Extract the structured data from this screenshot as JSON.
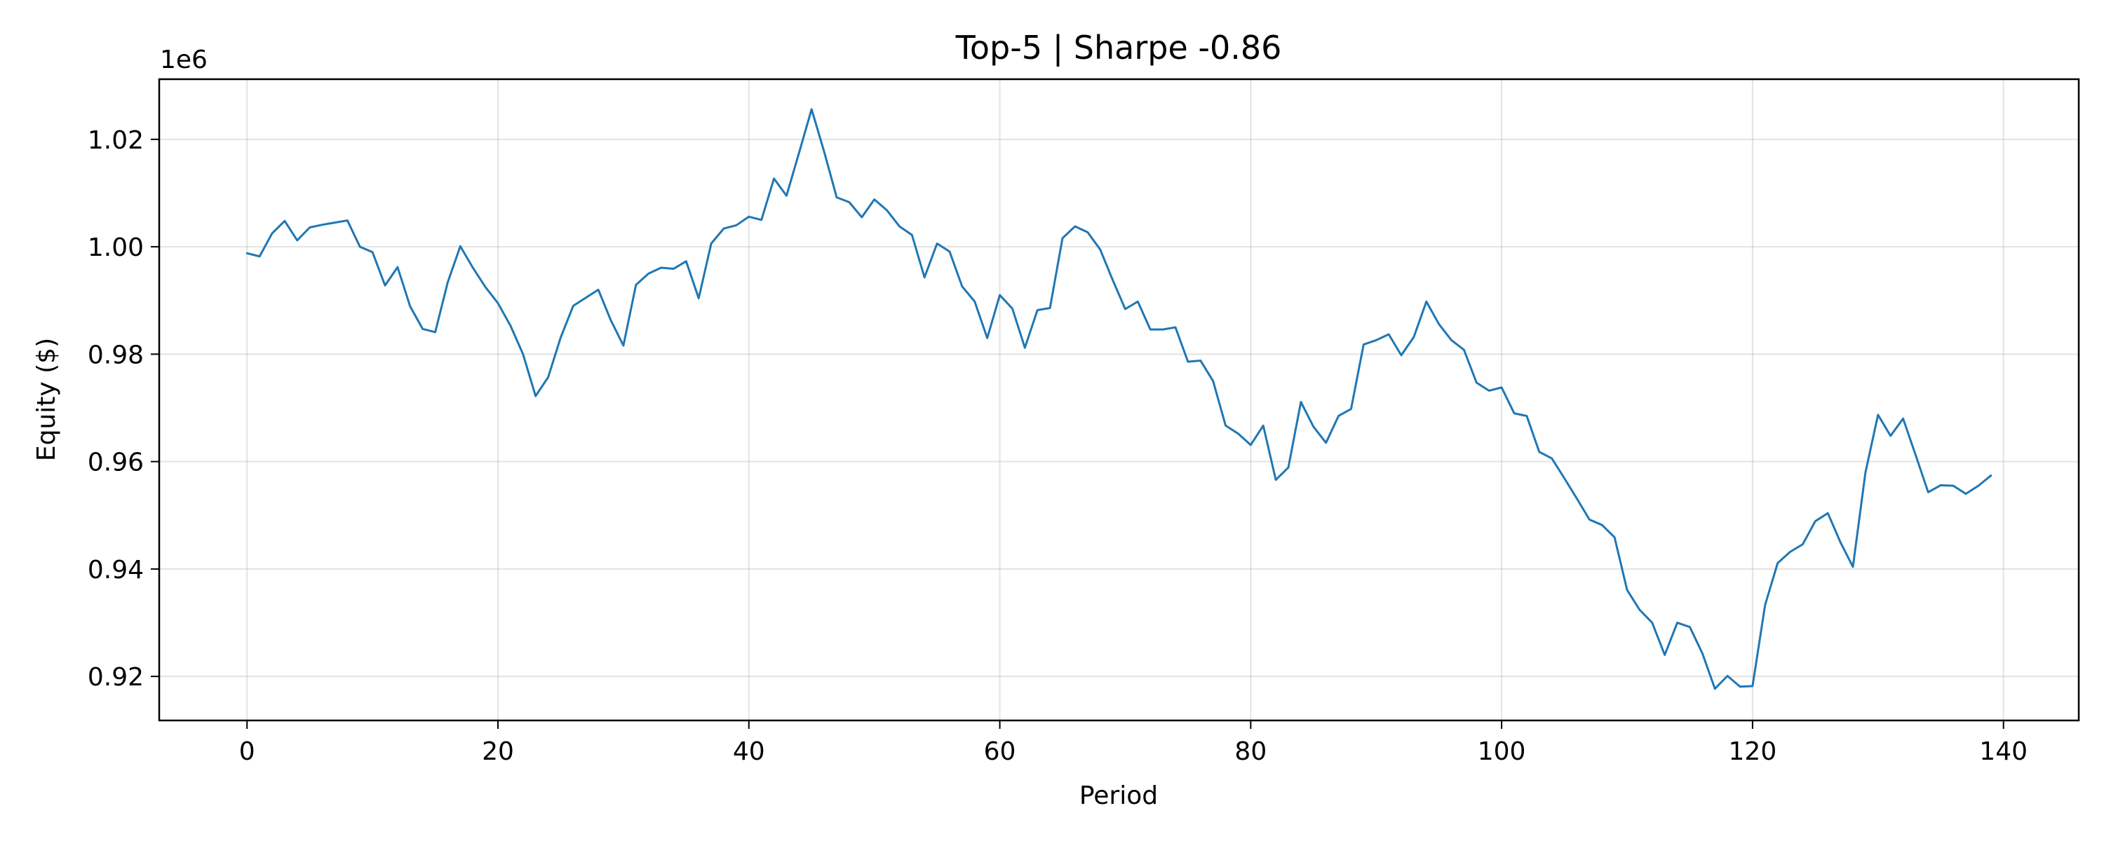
{
  "chart_data": {
    "type": "line",
    "title": "Top-5 | Sharpe -0.86",
    "xlabel": "Period",
    "ylabel": "Equity ($)",
    "y_offset_label": "1e6",
    "x_ticks": [
      0,
      20,
      40,
      60,
      80,
      100,
      120,
      140
    ],
    "y_ticks": [
      0.92,
      0.94,
      0.96,
      0.98,
      1.0,
      1.02
    ],
    "y_tick_labels": [
      "0.92",
      "0.94",
      "0.96",
      "0.98",
      "1.00",
      "1.02"
    ],
    "xlim": [
      -7,
      146
    ],
    "ylim": [
      0.9118,
      1.0312
    ],
    "grid": true,
    "line_color": "#1f77b4",
    "series": [
      {
        "x": [
          0,
          1,
          2,
          3,
          4,
          5,
          6,
          7,
          8,
          9,
          10,
          11,
          12,
          13,
          14,
          15,
          16,
          17,
          18,
          19,
          20,
          21,
          22,
          23,
          24,
          25,
          26,
          27,
          28,
          29,
          30,
          31,
          32,
          33,
          34,
          35,
          36,
          37,
          38,
          39,
          40,
          41,
          42,
          43,
          44,
          45,
          46,
          47,
          48,
          49,
          50,
          51,
          52,
          53,
          54,
          55,
          56,
          57,
          58,
          59,
          60,
          61,
          62,
          63,
          64,
          65,
          66,
          67,
          68,
          69,
          70,
          71,
          72,
          73,
          74,
          75,
          76,
          77,
          78,
          79,
          80,
          81,
          82,
          83,
          84,
          85,
          86,
          87,
          88,
          89,
          90,
          91,
          92,
          93,
          94,
          95,
          96,
          97,
          98,
          99,
          100,
          101,
          102,
          103,
          104,
          105,
          106,
          107,
          108,
          109,
          110,
          111,
          112,
          113,
          114,
          115,
          116,
          117,
          118,
          119,
          120,
          121,
          122,
          123,
          124,
          125,
          126,
          127,
          128,
          129,
          130,
          131,
          132,
          133,
          134,
          135,
          136,
          137,
          138,
          139
        ],
        "values": [
          0.9988,
          0.9982,
          1.0025,
          1.0048,
          1.0012,
          1.0036,
          1.0041,
          1.0045,
          1.0049,
          1.0,
          0.999,
          0.9928,
          0.9962,
          0.9889,
          0.9847,
          0.9841,
          0.9934,
          1.0001,
          0.9961,
          0.9925,
          0.9895,
          0.9853,
          0.98,
          0.9722,
          0.9757,
          0.9831,
          0.989,
          0.9905,
          0.992,
          0.9863,
          0.9816,
          0.9929,
          0.995,
          0.9961,
          0.9959,
          0.9973,
          0.9904,
          1.0006,
          1.0034,
          1.004,
          1.0056,
          1.005,
          1.0127,
          1.0095,
          1.0175,
          1.0256,
          1.0177,
          1.0092,
          1.0083,
          1.0055,
          1.0088,
          1.0068,
          1.0038,
          1.0022,
          0.9943,
          1.0006,
          0.9991,
          0.9926,
          0.9898,
          0.983,
          0.991,
          0.9885,
          0.9812,
          0.9882,
          0.9886,
          1.0016,
          1.0038,
          1.0027,
          0.9995,
          0.9938,
          0.9884,
          0.9898,
          0.9846,
          0.9846,
          0.985,
          0.9786,
          0.9788,
          0.975,
          0.9667,
          0.9652,
          0.9631,
          0.9667,
          0.9566,
          0.9589,
          0.9711,
          0.9665,
          0.9635,
          0.9685,
          0.9698,
          0.9818,
          0.9826,
          0.9837,
          0.9798,
          0.9832,
          0.9898,
          0.9856,
          0.9826,
          0.9808,
          0.9747,
          0.9732,
          0.9738,
          0.969,
          0.9685,
          0.9618,
          0.9606,
          0.9569,
          0.9531,
          0.9492,
          0.9482,
          0.9459,
          0.9361,
          0.9324,
          0.93,
          0.924,
          0.93,
          0.9292,
          0.9243,
          0.9177,
          0.9201,
          0.9181,
          0.9182,
          0.9333,
          0.9411,
          0.9432,
          0.9446,
          0.9489,
          0.9504,
          0.945,
          0.9404,
          0.958,
          0.9687,
          0.9648,
          0.968,
          0.9612,
          0.9543,
          0.9556,
          0.9555,
          0.954,
          0.9555,
          0.9574
        ]
      }
    ]
  }
}
